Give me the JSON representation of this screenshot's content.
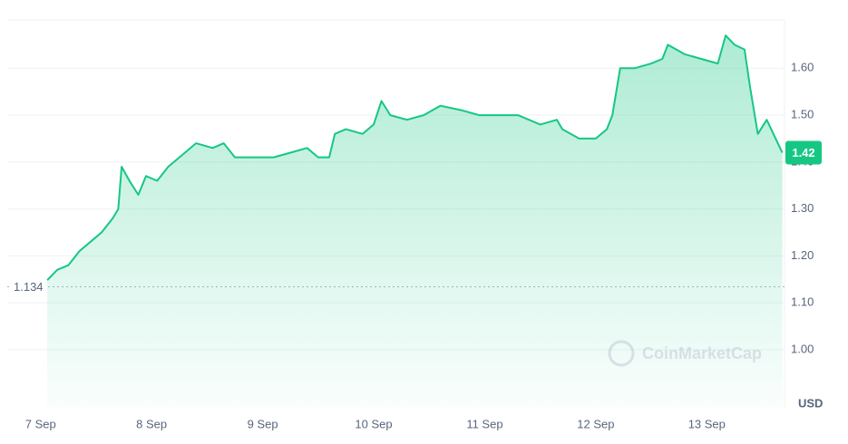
{
  "chart_data": {
    "type": "line",
    "series": [
      {
        "color": "#16c784",
        "x": [
          0.06,
          0.15,
          0.25,
          0.35,
          0.45,
          0.55,
          0.65,
          0.7,
          0.73,
          0.8,
          0.88,
          0.95,
          1.05,
          1.15,
          1.3,
          1.4,
          1.55,
          1.65,
          1.75,
          1.9,
          2.1,
          2.25,
          2.4,
          2.5,
          2.55,
          2.6,
          2.65,
          2.75,
          2.9,
          3.0,
          3.07,
          3.15,
          3.3,
          3.45,
          3.6,
          3.8,
          3.95,
          4.1,
          4.3,
          4.5,
          4.65,
          4.7,
          4.85,
          5.0,
          5.1,
          5.15,
          5.22,
          5.35,
          5.5,
          5.6,
          5.65,
          5.8,
          5.95,
          6.1,
          6.17,
          6.25,
          6.34,
          6.39,
          6.46,
          6.54,
          6.62,
          6.68
        ],
        "values": [
          1.148,
          1.17,
          1.18,
          1.21,
          1.23,
          1.25,
          1.28,
          1.3,
          1.39,
          1.36,
          1.33,
          1.37,
          1.36,
          1.39,
          1.42,
          1.44,
          1.43,
          1.44,
          1.41,
          1.41,
          1.41,
          1.42,
          1.43,
          1.41,
          1.41,
          1.41,
          1.46,
          1.47,
          1.46,
          1.48,
          1.53,
          1.5,
          1.49,
          1.5,
          1.52,
          1.51,
          1.5,
          1.5,
          1.5,
          1.48,
          1.49,
          1.47,
          1.45,
          1.45,
          1.47,
          1.5,
          1.6,
          1.6,
          1.61,
          1.62,
          1.65,
          1.63,
          1.62,
          1.61,
          1.67,
          1.65,
          1.64,
          1.56,
          1.46,
          1.49,
          1.45,
          1.42
        ]
      }
    ],
    "xlim": [
      -0.3,
      6.7
    ],
    "xticks": [
      {
        "value": 0,
        "label": "7 Sep"
      },
      {
        "value": 1,
        "label": "8 Sep"
      },
      {
        "value": 2,
        "label": "9 Sep"
      },
      {
        "value": 3,
        "label": "10 Sep"
      },
      {
        "value": 4,
        "label": "11 Sep"
      },
      {
        "value": 5,
        "label": "12 Sep"
      },
      {
        "value": 6,
        "label": "13 Sep"
      }
    ],
    "ylim": [
      0.876,
      1.703
    ],
    "yticks": [
      {
        "value": 1,
        "label": "1.00"
      },
      {
        "value": 1.1,
        "label": "1.10"
      },
      {
        "value": 1.2,
        "label": "1.20"
      },
      {
        "value": 1.3,
        "label": "1.30"
      },
      {
        "value": 1.4,
        "label": "1.40"
      },
      {
        "value": 1.5,
        "label": "1.50"
      },
      {
        "value": 1.6,
        "label": "1.60"
      }
    ],
    "grid": true,
    "y_axis_label": "USD",
    "reference_line": 1.134,
    "current_price": 1.42,
    "watermark": "CoinMarketCap"
  }
}
